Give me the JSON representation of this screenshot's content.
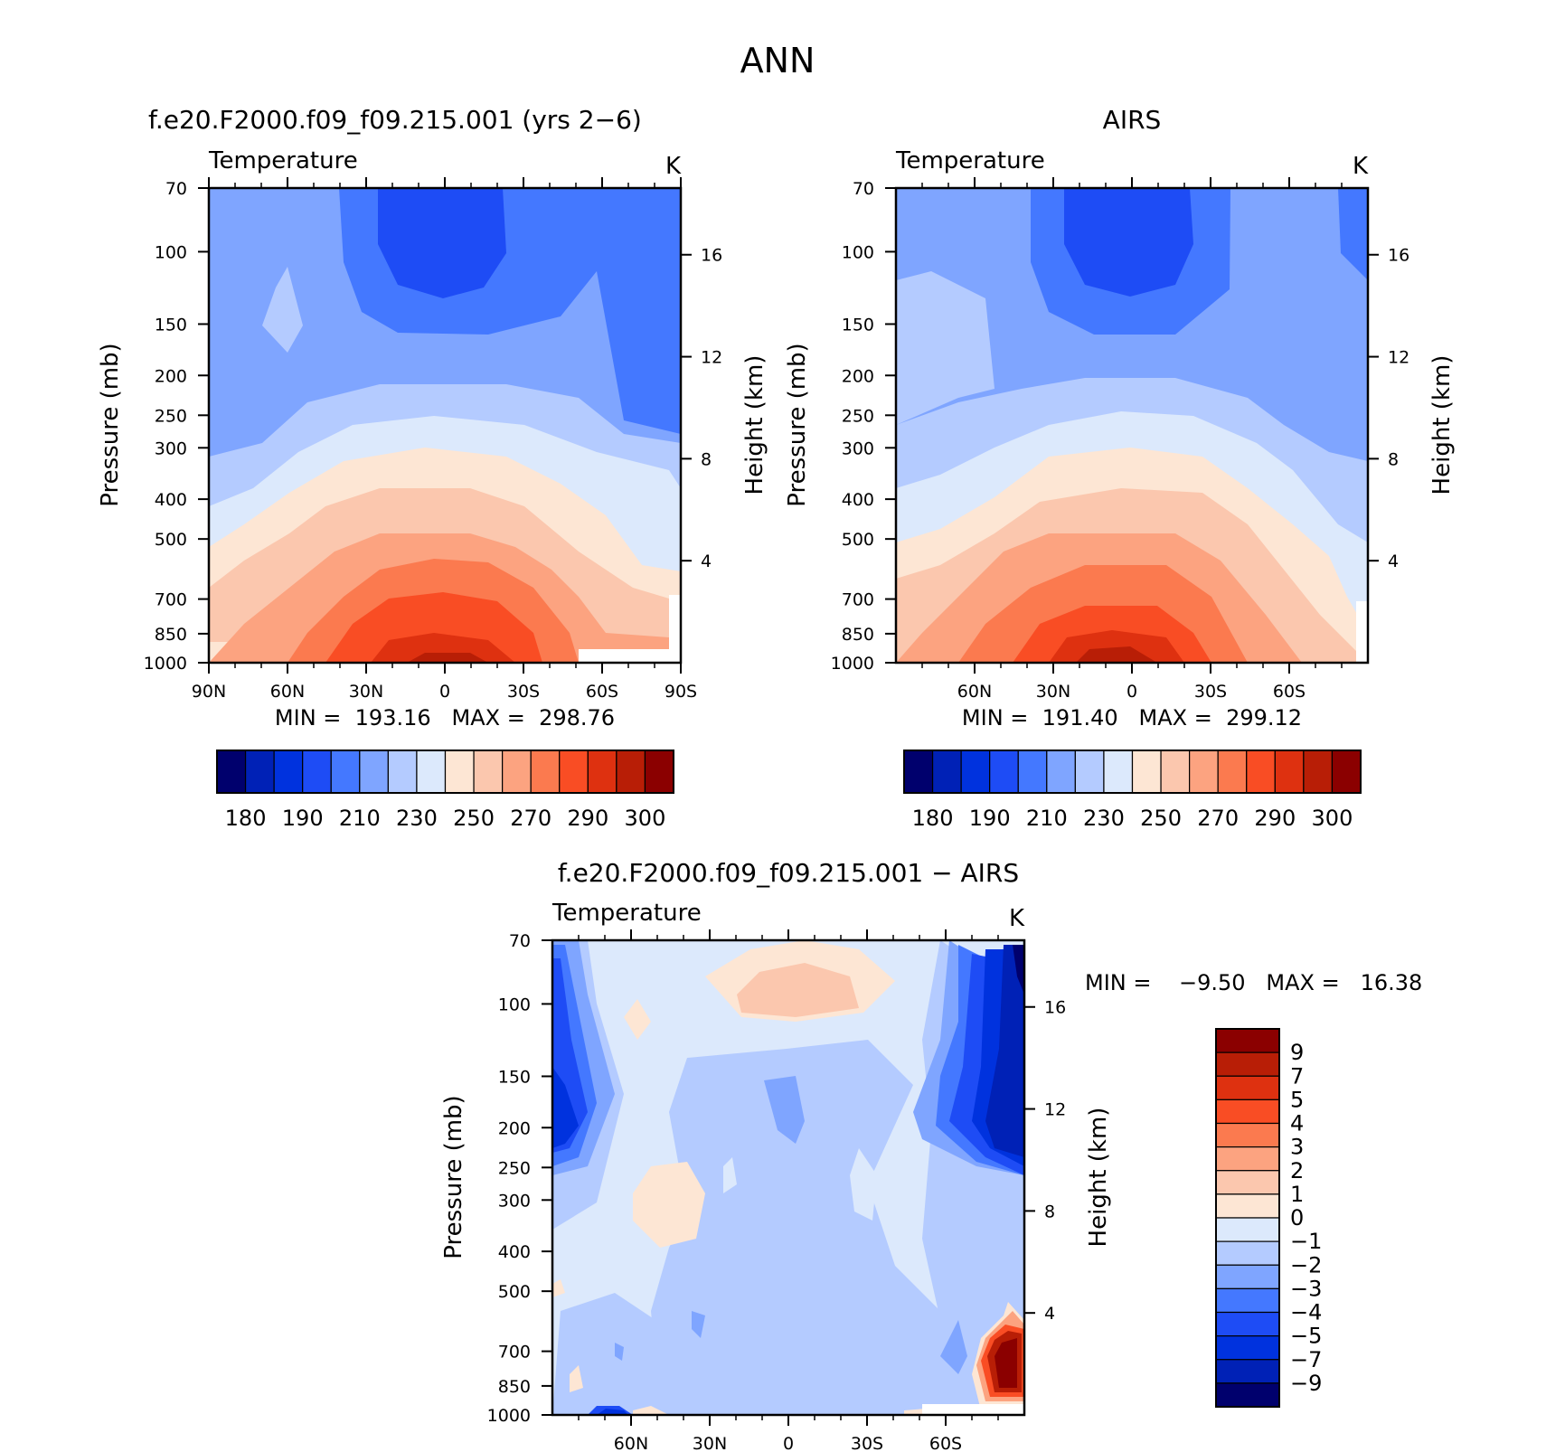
{
  "title": "ANN",
  "chart_data": [
    {
      "type": "heatmap",
      "id": "model",
      "title": "f.e20.F2000.f09_f09.215.001 (yrs 2−6)",
      "left_label": "Temperature",
      "units": "K",
      "ylabel": "Pressure (mb)",
      "y2label": "Height (km)",
      "x_ticks": [
        "90N",
        "60N",
        "30N",
        "0",
        "30S",
        "60S",
        "90S"
      ],
      "x_values": [
        90,
        60,
        30,
        0,
        -30,
        -60,
        -90
      ],
      "xlim": [
        90,
        -90
      ],
      "y_ticks": [
        "70",
        "100",
        "150",
        "200",
        "250",
        "300",
        "400",
        "500",
        "700",
        "850",
        "1000"
      ],
      "y_values": [
        70,
        100,
        150,
        200,
        250,
        300,
        400,
        500,
        700,
        850,
        1000
      ],
      "ylim": [
        1000,
        70
      ],
      "y_scale": "log",
      "y2_ticks": [
        "4",
        "8",
        "12",
        "16"
      ],
      "y2_values": [
        4,
        8,
        12,
        16
      ],
      "stats": "MIN =  193.16   MAX =  298.76",
      "min": 193.16,
      "max": 298.76,
      "colorbar": {
        "orientation": "horizontal",
        "tick_labels": [
          "180",
          "190",
          "210",
          "230",
          "250",
          "270",
          "290",
          "300"
        ],
        "colors": [
          "#00006d",
          "#0021b6",
          "#0032de",
          "#1e4cf5",
          "#4478ff",
          "#7fa5ff",
          "#b4cbff",
          "#dce9fc",
          "#fde6d4",
          "#fbc7ae",
          "#fca380",
          "#fb7a4f",
          "#f94d24",
          "#de3110",
          "#b81e06",
          "#8b0000"
        ]
      }
    },
    {
      "type": "heatmap",
      "id": "obs",
      "title": "AIRS",
      "left_label": "Temperature",
      "units": "K",
      "ylabel": "Pressure (mb)",
      "y2label": "Height (km)",
      "x_ticks": [
        "60N",
        "30N",
        "0",
        "30S",
        "60S"
      ],
      "x_values": [
        60,
        30,
        0,
        -30,
        -60
      ],
      "xlim": [
        90,
        -90
      ],
      "y_ticks": [
        "70",
        "100",
        "150",
        "200",
        "250",
        "300",
        "400",
        "500",
        "700",
        "850",
        "1000"
      ],
      "y_values": [
        70,
        100,
        150,
        200,
        250,
        300,
        400,
        500,
        700,
        850,
        1000
      ],
      "ylim": [
        1000,
        70
      ],
      "y_scale": "log",
      "y2_ticks": [
        "4",
        "8",
        "12",
        "16"
      ],
      "y2_values": [
        4,
        8,
        12,
        16
      ],
      "stats": "MIN =  191.40   MAX =  299.12",
      "min": 191.4,
      "max": 299.12,
      "colorbar": {
        "orientation": "horizontal",
        "tick_labels": [
          "180",
          "190",
          "210",
          "230",
          "250",
          "270",
          "290",
          "300"
        ],
        "colors": [
          "#00006d",
          "#0021b6",
          "#0032de",
          "#1e4cf5",
          "#4478ff",
          "#7fa5ff",
          "#b4cbff",
          "#dce9fc",
          "#fde6d4",
          "#fbc7ae",
          "#fca380",
          "#fb7a4f",
          "#f94d24",
          "#de3110",
          "#b81e06",
          "#8b0000"
        ]
      }
    },
    {
      "type": "heatmap",
      "id": "diff",
      "title": "f.e20.F2000.f09_f09.215.001 − AIRS",
      "left_label": "Temperature",
      "units": "K",
      "ylabel": "Pressure (mb)",
      "y2label": "Height (km)",
      "x_ticks": [
        "60N",
        "30N",
        "0",
        "30S",
        "60S"
      ],
      "x_values": [
        60,
        30,
        0,
        -30,
        -60
      ],
      "xlim": [
        90,
        -90
      ],
      "y_ticks": [
        "70",
        "100",
        "150",
        "200",
        "250",
        "300",
        "400",
        "500",
        "700",
        "850",
        "1000"
      ],
      "y_values": [
        70,
        100,
        150,
        200,
        250,
        300,
        400,
        500,
        700,
        850,
        1000
      ],
      "ylim": [
        1000,
        70
      ],
      "y_scale": "log",
      "y2_ticks": [
        "4",
        "8",
        "12",
        "16"
      ],
      "y2_values": [
        4,
        8,
        12,
        16
      ],
      "stats": "MIN =    −9.50   MAX =   16.38",
      "min": -9.5,
      "max": 16.38,
      "colorbar": {
        "orientation": "vertical",
        "tick_labels": [
          "9",
          "7",
          "5",
          "4",
          "3",
          "2",
          "1",
          "0",
          "−1",
          "−2",
          "−3",
          "−4",
          "−5",
          "−7",
          "−9"
        ],
        "colors": [
          "#8b0000",
          "#b81e06",
          "#de3110",
          "#f94d24",
          "#fb7a4f",
          "#fca380",
          "#fbc7ae",
          "#fde6d4",
          "#dce9fc",
          "#b4cbff",
          "#7fa5ff",
          "#4478ff",
          "#1e4cf5",
          "#0032de",
          "#0021b6",
          "#00006d"
        ]
      }
    }
  ]
}
